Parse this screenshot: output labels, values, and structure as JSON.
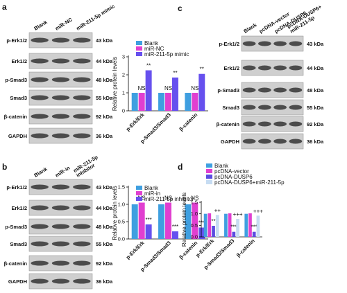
{
  "labels": [
    "a",
    "b",
    "c",
    "d"
  ],
  "blots": [
    {
      "lanes": [
        [
          "Blank"
        ],
        [
          "miR-NC"
        ],
        [
          "miR-211-5p mimic"
        ]
      ],
      "rows": [
        {
          "name": "p-Erk1/2",
          "size": "43 kDa"
        },
        {
          "name": "Erk1/2",
          "size": "44 kDa"
        },
        {
          "name": "p-Smad3",
          "size": "48 kDa"
        },
        {
          "name": "Smad3",
          "size": "55 kDa"
        },
        {
          "name": "β-catenin",
          "size": "92 kDa"
        },
        {
          "name": "GAPDH",
          "size": "36 kDa"
        }
      ]
    },
    {
      "lanes": [
        [
          "Blank"
        ],
        [
          "miR-in"
        ],
        [
          "miR-211-5p",
          "inhibitor"
        ]
      ],
      "rows": [
        {
          "name": "p-Erk1/2",
          "size": "43 kDa"
        },
        {
          "name": "Erk1/2",
          "size": "44 kDa"
        },
        {
          "name": "p-Smad3",
          "size": "48 kDa"
        },
        {
          "name": "Smad3",
          "size": "55 kDa"
        },
        {
          "name": "β-catenin",
          "size": "92 kDa"
        },
        {
          "name": "GAPDH",
          "size": "36 kDa"
        }
      ]
    },
    {
      "lanes": [
        [
          "Blank"
        ],
        [
          "pcDNA-vector"
        ],
        [
          "pcDNA-DUSP6"
        ],
        [
          "pcDNA-DUSP6+",
          "miR-211-5p"
        ]
      ],
      "rows": [
        {
          "name": "p-Erk1/2",
          "size": "43 kDa"
        },
        {
          "name": "Erk1/2",
          "size": "44 kDa"
        },
        {
          "name": "p-Smad3",
          "size": "48 kDa"
        },
        {
          "name": "Smad3",
          "size": "55 kDa"
        },
        {
          "name": "β-catenin",
          "size": "92 kDa"
        },
        {
          "name": "GAPDH",
          "size": "36 kDa"
        }
      ]
    }
  ],
  "chart_data": [
    {
      "type": "bar",
      "ylabel": "Relative protein levels",
      "categories": [
        "p-Erk/Erk",
        "p-Smad3/Smad3",
        "β-catenin"
      ],
      "series": [
        {
          "name": "Blank",
          "color": "#3f9fe0",
          "values": [
            1.0,
            1.0,
            1.0
          ],
          "annotations": [
            null,
            null,
            null
          ]
        },
        {
          "name": "miR-NC",
          "color": "#e03fd0",
          "values": [
            1.0,
            1.0,
            1.0
          ],
          "annotations": [
            "NS",
            "NS",
            "NS"
          ]
        },
        {
          "name": "miR-211-5p mimic",
          "color": "#6650ee",
          "values": [
            2.25,
            1.85,
            2.05
          ],
          "annotations": [
            "**",
            "**",
            "**"
          ]
        }
      ],
      "ylim": [
        0,
        3
      ],
      "yticks": [
        0,
        1,
        2,
        3
      ]
    },
    {
      "type": "bar",
      "ylabel": "Relative protein levels",
      "categories": [
        "p-Erk/Erk",
        "p-Smad3/Smad3",
        "β-catenin"
      ],
      "series": [
        {
          "name": "Blank",
          "color": "#3f9fe0",
          "values": [
            1.0,
            1.0,
            1.0
          ],
          "annotations": [
            null,
            null,
            null
          ]
        },
        {
          "name": "miR-in",
          "color": "#e03fd0",
          "values": [
            1.05,
            1.05,
            1.05
          ],
          "annotations": [
            "NS",
            "NS",
            "NS"
          ]
        },
        {
          "name": "miR-211-5p inhibitor",
          "color": "#6650ee",
          "values": [
            0.42,
            0.22,
            0.33
          ],
          "annotations": [
            "***",
            "***",
            "***"
          ]
        }
      ],
      "ylim": [
        0,
        1.5
      ],
      "yticks": [
        {
          "value": 0,
          "label": "0.0"
        },
        {
          "value": 0.5,
          "label": "0.5"
        },
        {
          "value": 1,
          "label": "1.0"
        },
        {
          "value": 1.5,
          "label": "1.5"
        }
      ]
    },
    {
      "type": "bar",
      "ylabel": "Relative protein levels",
      "categories": [
        "p-Erk/Erk",
        "p-Smad3/Smad3",
        "β-catenin"
      ],
      "series": [
        {
          "name": "Blank",
          "color": "#3f9fe0",
          "values": [
            1.0,
            1.0,
            1.0
          ],
          "annotations": [
            null,
            null,
            null
          ]
        },
        {
          "name": "pcDNA-vector",
          "color": "#e03fd0",
          "values": [
            1.02,
            1.02,
            1.02
          ],
          "annotations": [
            null,
            null,
            null
          ]
        },
        {
          "name": "pcDNA-DUSP6",
          "color": "#5a4de0",
          "values": [
            0.48,
            0.22,
            0.22
          ],
          "annotations": [
            "**",
            "***",
            "***"
          ]
        },
        {
          "name": "pcDNA-DUSP6+miR-211-5p",
          "color": "#c6dcf2",
          "values": [
            0.95,
            0.78,
            0.92
          ],
          "annotations": [
            "++",
            "+++",
            "+++"
          ]
        }
      ],
      "ylim": [
        0,
        1.5
      ],
      "yticks": [
        {
          "value": 0,
          "label": "0.0"
        },
        {
          "value": 0.5,
          "label": "0.5"
        },
        {
          "value": 1,
          "label": "1.0"
        },
        {
          "value": 1.5,
          "label": "1.5"
        }
      ]
    }
  ]
}
